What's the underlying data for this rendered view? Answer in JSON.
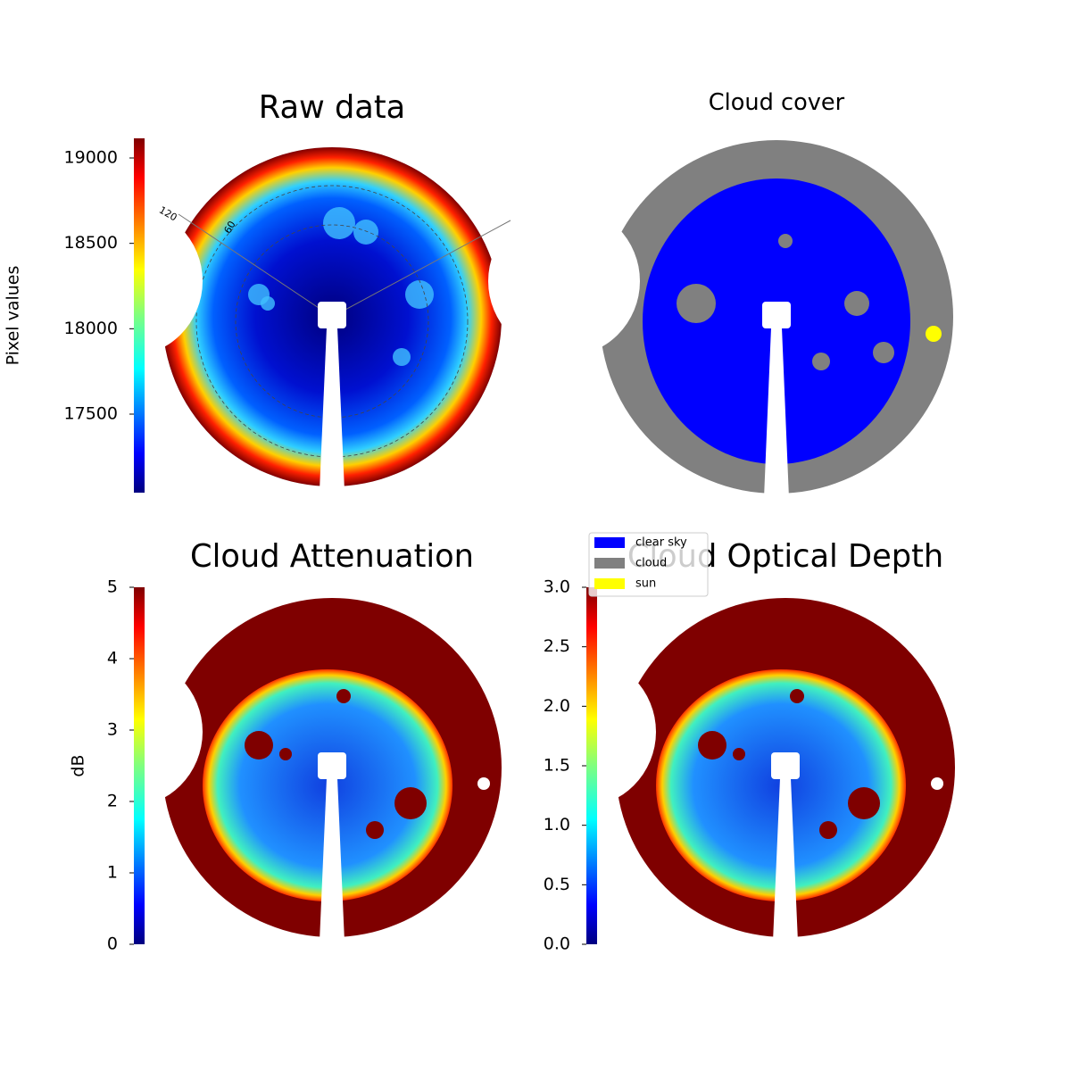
{
  "chart_data": [
    {
      "type": "image",
      "title": "Raw data",
      "colorbar_label": "Pixel values",
      "colormap": "jet",
      "ylim": [
        17040,
        19115
      ],
      "yticks": [
        17500,
        18000,
        18500,
        19000
      ],
      "annotations": [
        "120",
        "60"
      ]
    },
    {
      "type": "image",
      "title": "Cloud cover",
      "series": [
        {
          "name": "clear sky",
          "color": "#0000ff"
        },
        {
          "name": "cloud",
          "color": "#808080"
        },
        {
          "name": "sun",
          "color": "#ffff00"
        }
      ]
    },
    {
      "type": "image",
      "title": "Cloud Attenuation",
      "colorbar_label": "dB",
      "colormap": "jet",
      "ylim": [
        0,
        5
      ],
      "yticks": [
        0,
        1,
        2,
        3,
        4,
        5
      ]
    },
    {
      "type": "image",
      "title": "Cloud Optical Depth",
      "colormap": "jet",
      "ylim": [
        0,
        3
      ],
      "yticks": [
        {
          "value": 0,
          "label": "0.0"
        },
        {
          "value": 0.5,
          "label": "0.5"
        },
        {
          "value": 1,
          "label": "1.0"
        },
        {
          "value": 1.5,
          "label": "1.5"
        },
        {
          "value": 2,
          "label": "2.0"
        },
        {
          "value": 2.5,
          "label": "2.5"
        },
        {
          "value": 3,
          "label": "3.0"
        }
      ]
    }
  ]
}
